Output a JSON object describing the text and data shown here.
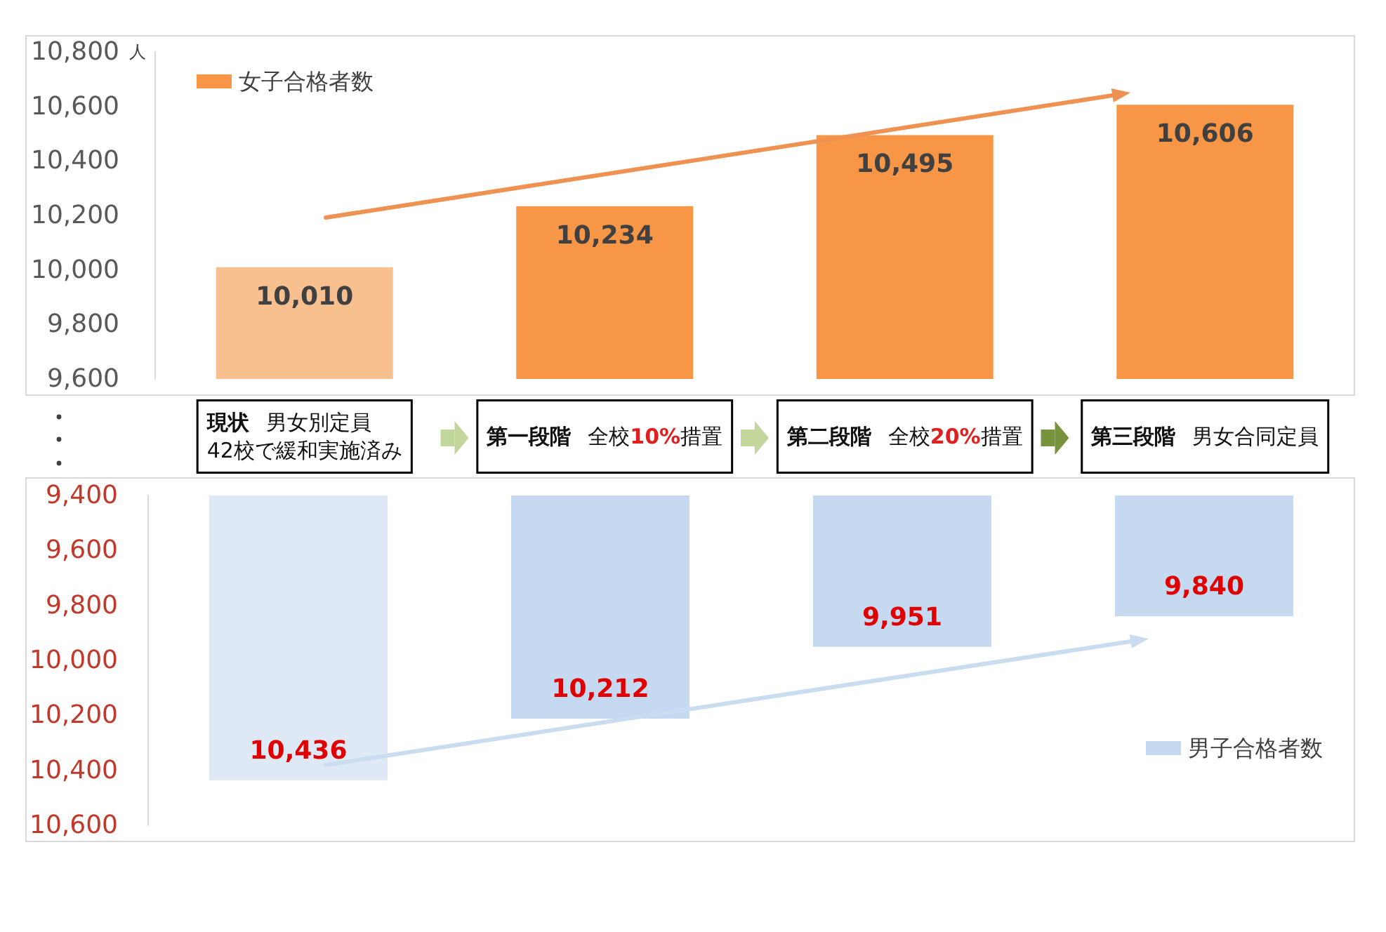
{
  "chart_data": [
    {
      "type": "bar",
      "categories": [
        "現状 男女別定員\n42校で緩和実施済み",
        "第一段階 全校10%措置",
        "第二段階 全校20%措置",
        "第三段階 男女合同定員"
      ],
      "ylabel": "人",
      "series": [
        {
          "name": "女子合格者数",
          "color": "#f79646",
          "colors": [
            "#f8c08f",
            "#f79646",
            "#f79646",
            "#f79646"
          ],
          "values": [
            10010,
            10234,
            10495,
            10606
          ],
          "value_labels": [
            "10,010",
            "10,234",
            "10,495",
            "10,606"
          ]
        }
      ],
      "ylim": [
        9600,
        10800
      ],
      "yticks": [
        {
          "value": 9600,
          "label": "9,600"
        },
        {
          "value": 9800,
          "label": "9,800"
        },
        {
          "value": 10000,
          "label": "10,000"
        },
        {
          "value": 10200,
          "label": "10,200"
        },
        {
          "value": 10400,
          "label": "10,400"
        },
        {
          "value": 10600,
          "label": "10,600"
        },
        {
          "value": 10800,
          "label": "10,800"
        }
      ],
      "legend": "top left",
      "grid": false
    },
    {
      "type": "bar",
      "categories": [
        "現状 男女別定員\n42校で緩和実施済み",
        "第一段階 全校10%措置",
        "第二段階 全校20%措置",
        "第三段階 男女合同定員"
      ],
      "tick_labels": "y",
      "series": [
        {
          "name": "男子合格者数",
          "color": "#c5d9f1",
          "colors": [
            "#dfe8f5",
            "#c5d9f1",
            "#c5d9f1",
            "#c5d9f1"
          ],
          "values": [
            10436,
            10212,
            9951,
            9840
          ],
          "value_labels": [
            "10,436",
            "10,212",
            "9,951",
            "9,840"
          ]
        }
      ],
      "ylim": [
        10600,
        9400
      ],
      "yticks": [
        {
          "value": 9400,
          "label": "9,400"
        },
        {
          "value": 9600,
          "label": "9,600"
        },
        {
          "value": 9800,
          "label": "9,800"
        },
        {
          "value": 10000,
          "label": "10,000"
        },
        {
          "value": 10200,
          "label": "10,200"
        },
        {
          "value": 10400,
          "label": "10,400"
        },
        {
          "value": 10600,
          "label": "10,600"
        }
      ],
      "legend": "bottom right",
      "grid": false
    }
  ]
}
